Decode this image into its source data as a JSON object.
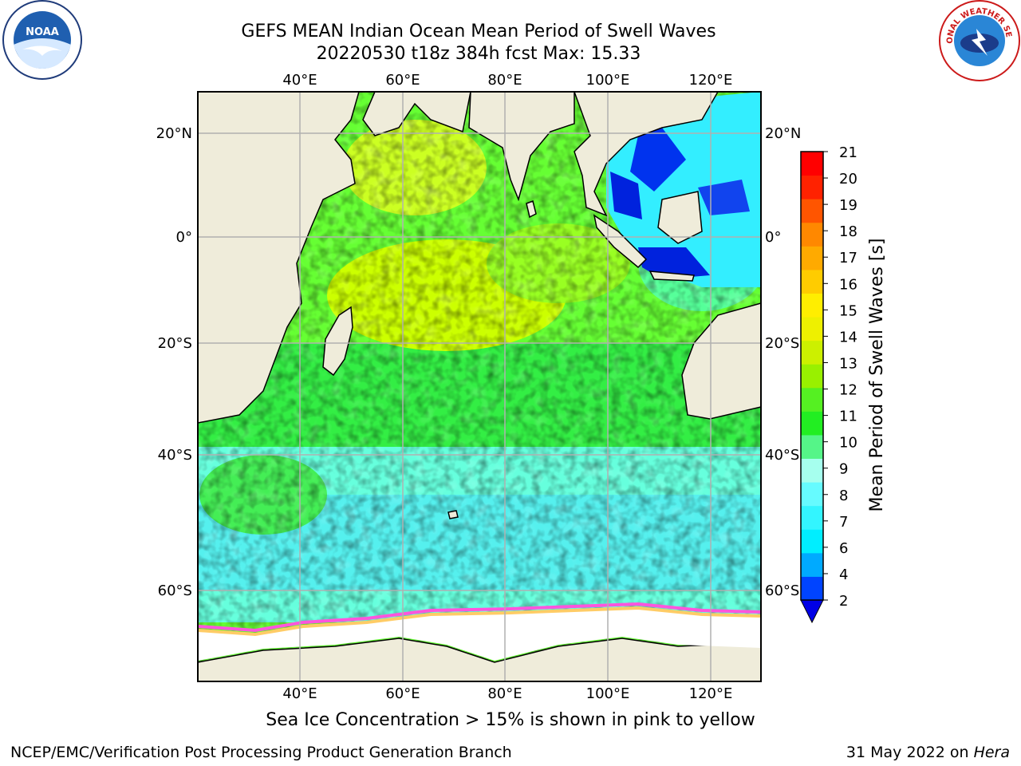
{
  "header": {
    "title_line1": "GEFS MEAN Indian Ocean Mean Period of Swell Waves",
    "title_line2": "20220530 t18z 384h fcst   Max: 15.33"
  },
  "map": {
    "lon_labels": [
      "40°E",
      "60°E",
      "80°E",
      "100°E",
      "120°E"
    ],
    "lat_labels": [
      "20°N",
      "0°",
      "20°S",
      "40°S",
      "60°S"
    ]
  },
  "colorbar": {
    "label": "Mean Period of Swell Waves [s]",
    "ticks": [
      "2",
      "4",
      "6",
      "7",
      "8",
      "9",
      "10",
      "11",
      "12",
      "13",
      "14",
      "15",
      "16",
      "17",
      "18",
      "19",
      "20",
      "21"
    ],
    "colors": [
      "#0044ff",
      "#00aaff",
      "#00eeff",
      "#33f5ff",
      "#66fbff",
      "#a6ffee",
      "#55f588",
      "#22ee22",
      "#55f022",
      "#99f000",
      "#ccf000",
      "#eef000",
      "#ffee00",
      "#ffcc00",
      "#ffaa00",
      "#ff8800",
      "#ff5500",
      "#ff2200",
      "#ff0000"
    ],
    "under_color": "#0000e6"
  },
  "footer": {
    "note": "Sea Ice Concentration > 15% is shown in pink to yellow",
    "credit": "NCEP/EMC/Verification Post Processing Product Generation Branch",
    "date": "31 May 2022 on ",
    "date_machine": "Hera"
  },
  "logos": {
    "left": "noaa-logo",
    "right": "nws-logo",
    "right_text": "NATIONAL WEATHER SERVICE"
  }
}
